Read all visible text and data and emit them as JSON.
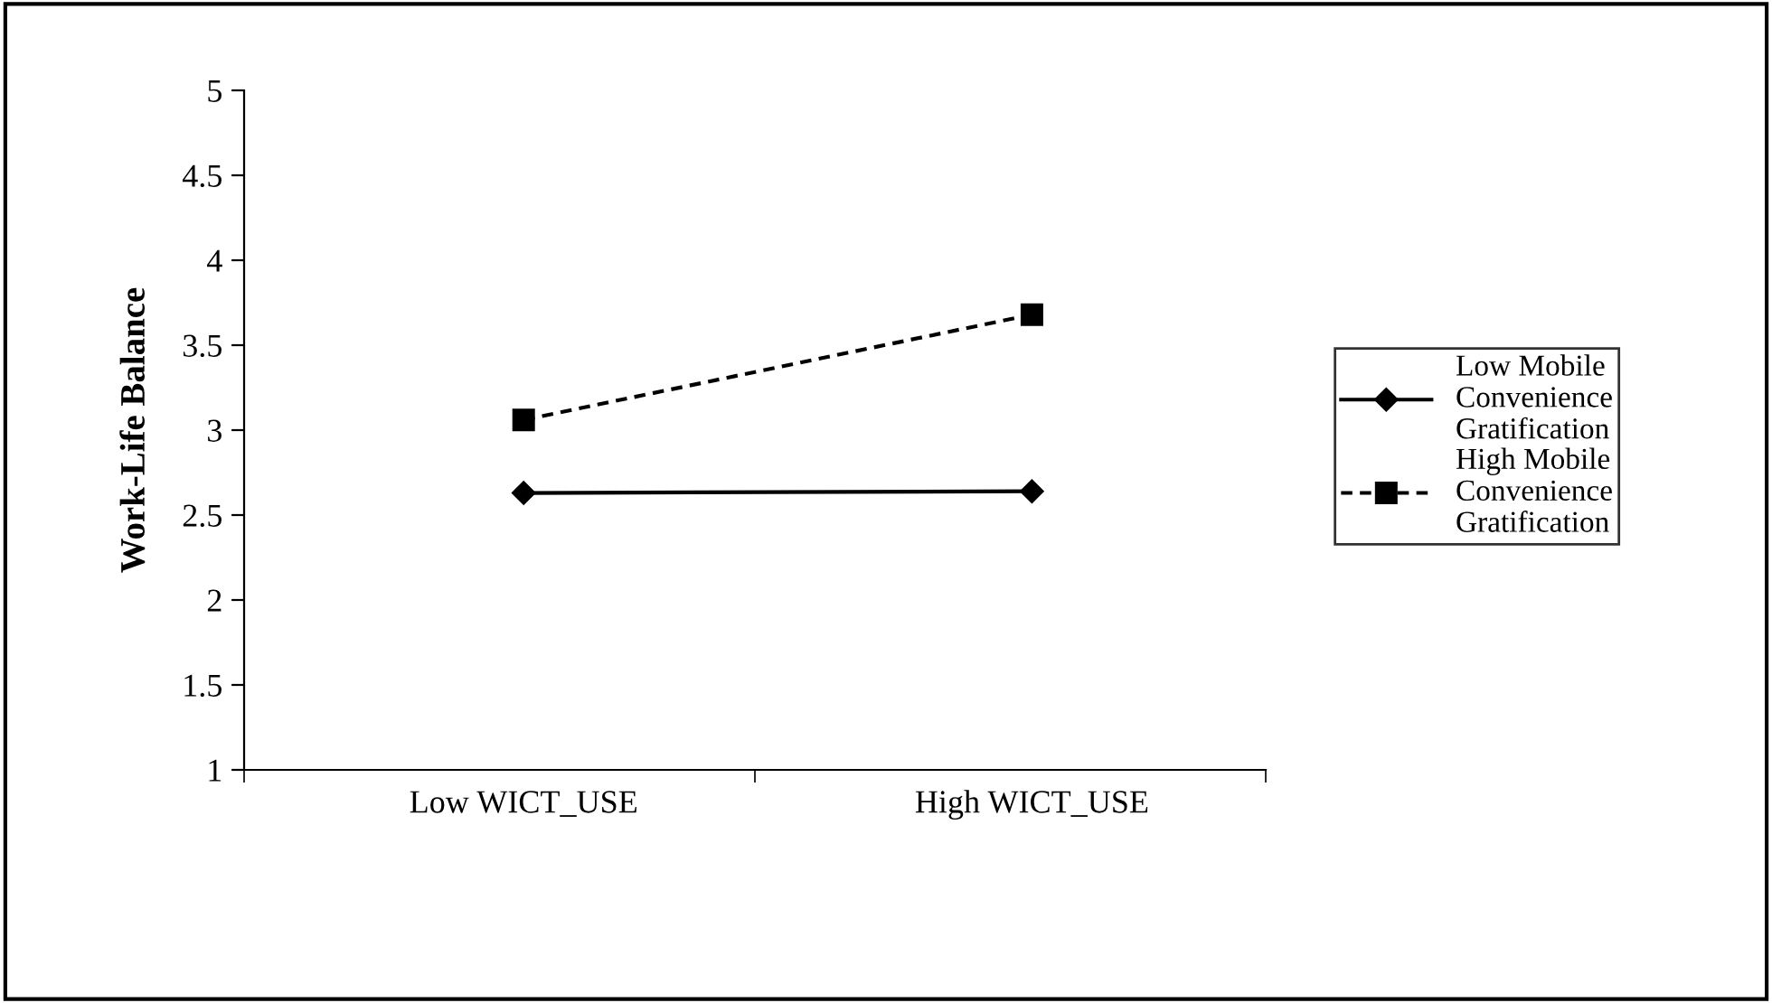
{
  "chart_data": {
    "type": "line",
    "ylabel": "Work-Life Balance",
    "categories": [
      "Low WICT_USE",
      "High WICT_USE"
    ],
    "series": [
      {
        "name": "Low Mobile\nConvenience\nGratification",
        "color": "#000000",
        "values": [
          2.63,
          2.64
        ],
        "marker": "diamond",
        "line_style": "solid"
      },
      {
        "name": "High Mobile\nConvenience\nGratification",
        "color": "#000000",
        "values": [
          3.06,
          3.68
        ],
        "marker": "square",
        "line_style": "dashed"
      }
    ],
    "ylim": [
      1,
      5
    ],
    "yticks": [
      1,
      1.5,
      2,
      2.5,
      3,
      3.5,
      4,
      4.5,
      5
    ],
    "grid": false,
    "legend": "right"
  }
}
